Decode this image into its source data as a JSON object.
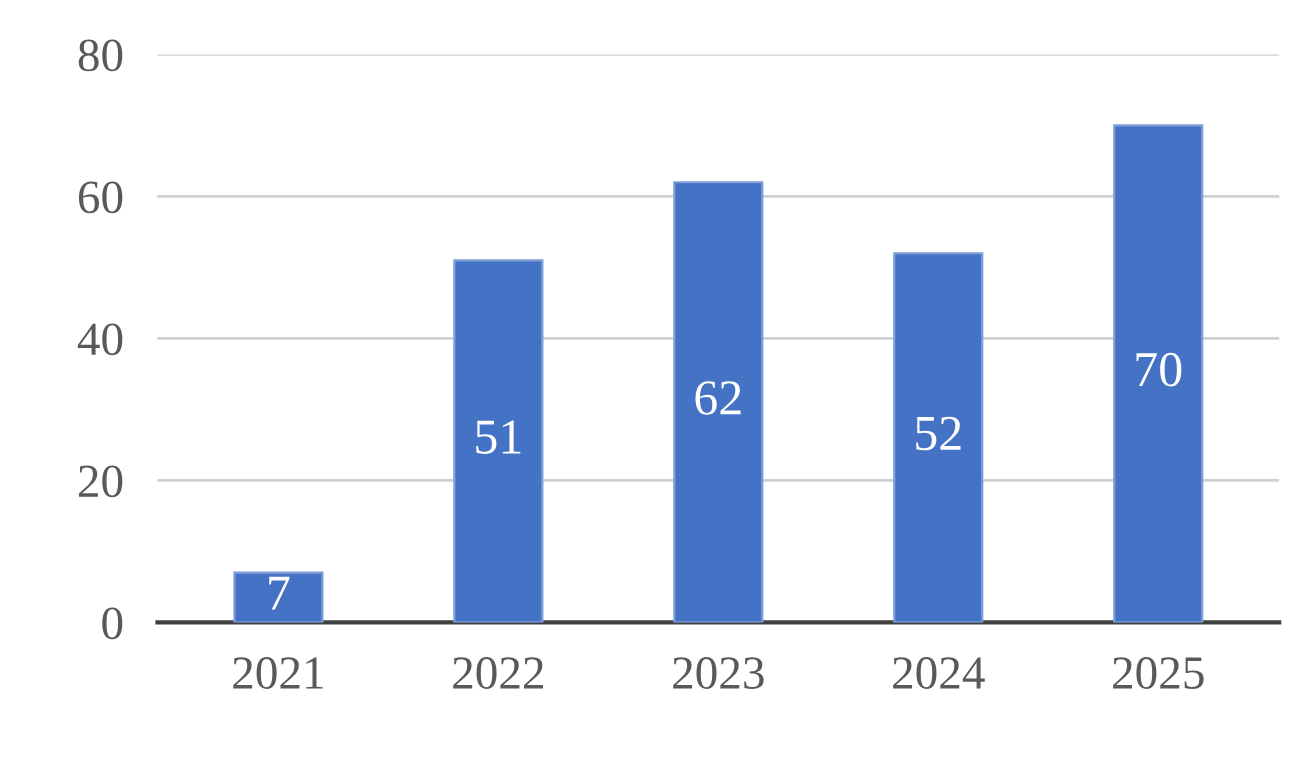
{
  "chart_data": {
    "type": "bar",
    "categories": [
      "2021",
      "2022",
      "2023",
      "2024",
      "2025"
    ],
    "values": [
      7,
      51,
      62,
      52,
      70
    ],
    "color": "#4472c4",
    "ylim": [
      0,
      80
    ],
    "yticks": [
      0,
      20,
      40,
      60,
      80
    ],
    "grid": "y",
    "data_labels": true
  }
}
